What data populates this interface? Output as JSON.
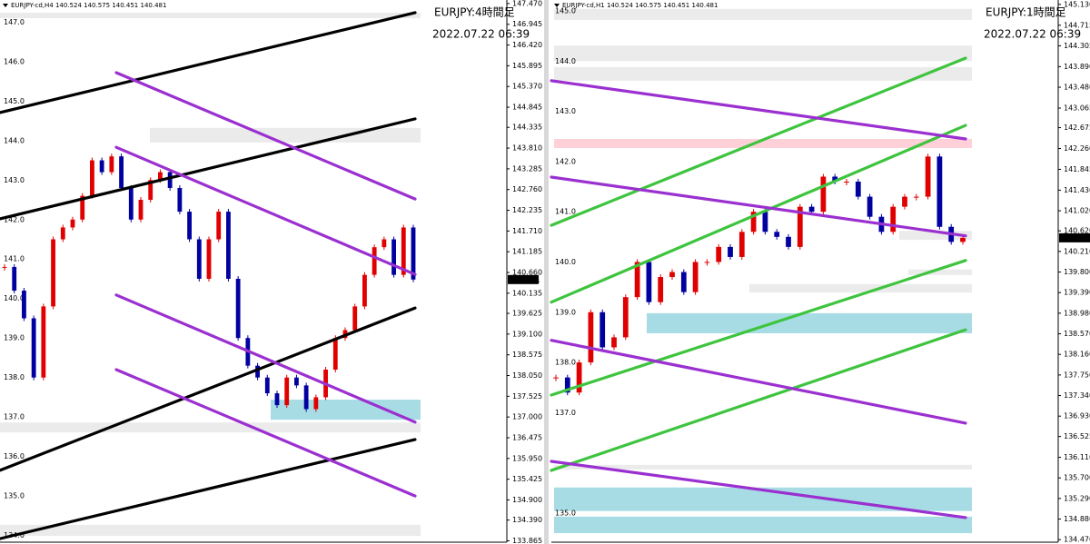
{
  "chart_data": [
    {
      "type": "candlestick",
      "header": "EURJPY-cd,H4  140.524 140.575 140.451 140.481",
      "title": "EURJPY:4時間足",
      "date": "2022.07.22 06:39",
      "ylim": [
        133.83,
        147.56
      ],
      "yticks": [
        {
          "value": 147.47,
          "label": "147.470"
        },
        {
          "value": 146.945,
          "label": "146.945"
        },
        {
          "value": 146.42,
          "label": "146.420"
        },
        {
          "value": 145.895,
          "label": "145.895"
        },
        {
          "value": 145.37,
          "label": "145.370"
        },
        {
          "value": 144.845,
          "label": "144.845"
        },
        {
          "value": 144.335,
          "label": "144.335"
        },
        {
          "value": 143.81,
          "label": "143.810"
        },
        {
          "value": 143.285,
          "label": "143.285"
        },
        {
          "value": 142.76,
          "label": "142.760"
        },
        {
          "value": 142.235,
          "label": "142.235"
        },
        {
          "value": 141.71,
          "label": "141.710"
        },
        {
          "value": 141.185,
          "label": "141.185"
        },
        {
          "value": 140.66,
          "label": "140.660"
        },
        {
          "value": 140.135,
          "label": "140.135"
        },
        {
          "value": 139.625,
          "label": "139.625"
        },
        {
          "value": 139.1,
          "label": "139.100"
        },
        {
          "value": 138.575,
          "label": "138.575"
        },
        {
          "value": 138.05,
          "label": "138.050"
        },
        {
          "value": 137.525,
          "label": "137.525"
        },
        {
          "value": 137,
          "label": "137.000"
        },
        {
          "value": 136.475,
          "label": "136.475"
        },
        {
          "value": 135.95,
          "label": "135.950"
        },
        {
          "value": 135.425,
          "label": "135.425"
        },
        {
          "value": 134.9,
          "label": "134.900"
        },
        {
          "value": 134.39,
          "label": "134.390"
        },
        {
          "value": 133.865,
          "label": "133.865"
        }
      ],
      "inner_ticks": [
        {
          "value": 147,
          "label": "147.0"
        },
        {
          "value": 146,
          "label": "146.0"
        },
        {
          "value": 145,
          "label": "145.0"
        },
        {
          "value": 144,
          "label": "144.0"
        },
        {
          "value": 143,
          "label": "143.0"
        },
        {
          "value": 142,
          "label": "142.0"
        },
        {
          "value": 141,
          "label": "141.0"
        },
        {
          "value": 140,
          "label": "140.0"
        },
        {
          "value": 139,
          "label": "139.0"
        },
        {
          "value": 138,
          "label": "138.0"
        },
        {
          "value": 137,
          "label": "137.0"
        },
        {
          "value": 136,
          "label": "136.0"
        },
        {
          "value": 135,
          "label": "135.0"
        },
        {
          "value": 134,
          "label": "134.0"
        }
      ],
      "last_price": 140.481,
      "up_color": "#e00000",
      "down_color": "#0000a0",
      "closes": [
        140.8,
        140.2,
        139.5,
        138.0,
        139.8,
        141.5,
        141.8,
        142.0,
        142.6,
        143.5,
        143.2,
        143.6,
        142.8,
        142.0,
        142.5,
        143.0,
        143.2,
        142.8,
        142.2,
        141.5,
        140.5,
        141.5,
        142.2,
        140.5,
        139.0,
        138.3,
        138.0,
        137.6,
        137.3,
        138.0,
        137.8,
        137.2,
        137.5,
        138.2,
        139.0,
        139.2,
        139.8,
        140.6,
        141.3,
        141.5,
        140.6,
        141.8,
        140.481
      ],
      "lines": [
        {
          "color": "#000000",
          "values": [
            144.71,
            147.24
          ]
        },
        {
          "color": "#000000",
          "values": [
            142.02,
            144.55
          ]
        },
        {
          "color": "#000000",
          "values": [
            135.65,
            139.76
          ]
        },
        {
          "color": "#000000",
          "values": [
            133.92,
            136.43
          ]
        },
        {
          "color": "#9b30d0",
          "values": [
            145.72,
            142.52
          ]
        },
        {
          "color": "#9b30d0",
          "values": [
            143.83,
            140.61
          ]
        },
        {
          "color": "#9b30d0",
          "values": [
            140.09,
            136.87
          ]
        },
        {
          "color": "#9b30d0",
          "values": [
            138.2,
            135.0
          ]
        }
      ],
      "zones": [
        {
          "color": "#ebebeb",
          "values": [
            147.24,
            147.1
          ]
        },
        {
          "color": "#ebebeb",
          "values": [
            144.32,
            143.95
          ]
        },
        {
          "color": "#ebebeb",
          "values": [
            136.86,
            136.61
          ]
        },
        {
          "color": "#ebebeb",
          "values": [
            134.27,
            133.99
          ]
        },
        {
          "color": "#a8dce4",
          "values": [
            137.44,
            136.93
          ]
        }
      ]
    },
    {
      "type": "candlestick",
      "header": "EURJPY-cd,H1  140.524 140.575 140.451 140.481",
      "title": "EURJPY:1時間足",
      "date": "2022.07.22 06:39",
      "ylim": [
        134.42,
        145.217
      ],
      "yticks": [
        {
          "value": 145.13,
          "label": "145.130"
        },
        {
          "value": 144.715,
          "label": "144.715"
        },
        {
          "value": 144.305,
          "label": "144.305"
        },
        {
          "value": 143.89,
          "label": "143.890"
        },
        {
          "value": 143.48,
          "label": "143.480"
        },
        {
          "value": 143.065,
          "label": "143.065"
        },
        {
          "value": 142.675,
          "label": "142.675"
        },
        {
          "value": 142.26,
          "label": "142.260"
        },
        {
          "value": 141.845,
          "label": "141.845"
        },
        {
          "value": 141.43,
          "label": "141.430"
        },
        {
          "value": 141.02,
          "label": "141.020"
        },
        {
          "value": 140.62,
          "label": "140.620"
        },
        {
          "value": 140.21,
          "label": "140.210"
        },
        {
          "value": 139.8,
          "label": "139.800"
        },
        {
          "value": 139.39,
          "label": "139.390"
        },
        {
          "value": 138.98,
          "label": "138.980"
        },
        {
          "value": 138.57,
          "label": "138.570"
        },
        {
          "value": 138.16,
          "label": "138.160"
        },
        {
          "value": 137.75,
          "label": "137.750"
        },
        {
          "value": 137.34,
          "label": "137.340"
        },
        {
          "value": 136.93,
          "label": "136.930"
        },
        {
          "value": 136.525,
          "label": "136.525"
        },
        {
          "value": 136.11,
          "label": "136.110"
        },
        {
          "value": 135.7,
          "label": "135.700"
        },
        {
          "value": 135.29,
          "label": "135.290"
        },
        {
          "value": 134.88,
          "label": "134.880"
        },
        {
          "value": 134.47,
          "label": "134.470"
        }
      ],
      "inner_ticks": [
        {
          "value": 145,
          "label": "145.0"
        },
        {
          "value": 144,
          "label": "144.0"
        },
        {
          "value": 143,
          "label": "143.0"
        },
        {
          "value": 142,
          "label": "142.0"
        },
        {
          "value": 141,
          "label": "141.0"
        },
        {
          "value": 140,
          "label": "140.0"
        },
        {
          "value": 139,
          "label": "139.0"
        },
        {
          "value": 138,
          "label": "138.0"
        },
        {
          "value": 137,
          "label": "137.0"
        },
        {
          "value": 135,
          "label": "135.0"
        }
      ],
      "last_price": 140.481,
      "up_color": "#e00000",
      "down_color": "#0000a0",
      "closes": [
        137.7,
        137.4,
        138.0,
        139.0,
        138.3,
        138.5,
        139.3,
        140.0,
        139.2,
        139.7,
        139.8,
        139.4,
        140.0,
        140.0,
        140.3,
        140.1,
        140.6,
        141.0,
        140.6,
        140.5,
        140.3,
        141.1,
        141.0,
        141.7,
        141.6,
        141.6,
        141.3,
        140.9,
        140.6,
        141.1,
        141.3,
        141.3,
        142.1,
        140.7,
        140.4,
        140.481
      ],
      "lines": [
        {
          "color": "#3ec43e",
          "values": [
            140.73,
            144.06
          ]
        },
        {
          "color": "#3ec43e",
          "values": [
            139.2,
            142.72
          ]
        },
        {
          "color": "#3ec43e",
          "values": [
            137.35,
            140.03
          ]
        },
        {
          "color": "#3ec43e",
          "values": [
            135.85,
            138.65
          ]
        },
        {
          "color": "#9b30d0",
          "values": [
            143.61,
            142.45
          ]
        },
        {
          "color": "#9b30d0",
          "values": [
            141.69,
            140.52
          ]
        },
        {
          "color": "#9b30d0",
          "values": [
            138.44,
            136.79
          ]
        },
        {
          "color": "#9b30d0",
          "values": [
            136.03,
            134.91
          ]
        }
      ],
      "zones": [
        {
          "color": "#ebebeb",
          "values": [
            145.04,
            144.82
          ]
        },
        {
          "color": "#ebebeb",
          "values": [
            144.31,
            144.0
          ]
        },
        {
          "color": "#ebebeb",
          "values": [
            143.88,
            143.61
          ]
        },
        {
          "color": "#ffd0d8",
          "values": [
            142.45,
            142.27
          ]
        },
        {
          "color": "#ebebeb",
          "values": [
            140.62,
            140.44
          ]
        },
        {
          "color": "#ebebeb",
          "values": [
            139.85,
            139.74
          ]
        },
        {
          "color": "#ebebeb",
          "values": [
            139.56,
            139.39
          ]
        },
        {
          "color": "#a8dce4",
          "values": [
            138.98,
            138.58
          ]
        },
        {
          "color": "#ebebeb",
          "values": [
            135.96,
            135.87
          ]
        },
        {
          "color": "#a8dce4",
          "values": [
            135.51,
            135.04
          ]
        },
        {
          "color": "#a8dce4",
          "values": [
            134.93,
            134.6
          ]
        }
      ]
    }
  ]
}
